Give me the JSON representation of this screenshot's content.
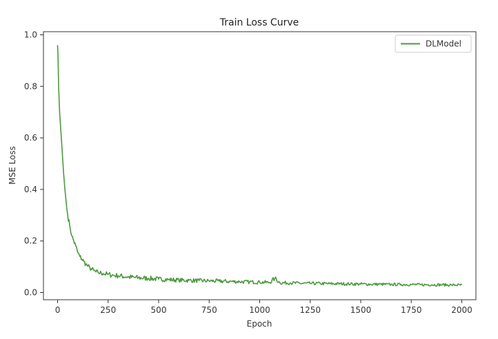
{
  "chart_data": {
    "type": "line",
    "title": "Train Loss Curve",
    "xlabel": "Epoch",
    "ylabel": "MSE Loss",
    "xlim": [
      -70,
      2070
    ],
    "ylim": [
      -0.028,
      1.012
    ],
    "xticks": [
      0,
      250,
      500,
      750,
      1000,
      1250,
      1500,
      1750,
      2000
    ],
    "yticks": [
      0.0,
      0.2,
      0.4,
      0.6,
      0.8,
      1.0
    ],
    "xtick_labels": [
      "0",
      "250",
      "500",
      "750",
      "1000",
      "1250",
      "1500",
      "1750",
      "2000"
    ],
    "ytick_labels": [
      "0.0",
      "0.2",
      "0.4",
      "0.6",
      "0.8",
      "1.0"
    ],
    "grid": false,
    "legend": {
      "placement": "top-right",
      "entries": [
        "DLModel"
      ]
    },
    "series": [
      {
        "name": "DLModel",
        "color": "#4a9a3c",
        "x": [
          0,
          2,
          5,
          10,
          15,
          20,
          25,
          30,
          35,
          40,
          45,
          50,
          60,
          70,
          80,
          90,
          100,
          110,
          120,
          130,
          140,
          150,
          160,
          170,
          180,
          190,
          200,
          225,
          250,
          275,
          300,
          350,
          400,
          450,
          500,
          550,
          600,
          650,
          700,
          750,
          800,
          850,
          900,
          950,
          1000,
          1050,
          1075,
          1100,
          1150,
          1200,
          1250,
          1300,
          1350,
          1400,
          1450,
          1500,
          1550,
          1600,
          1650,
          1700,
          1750,
          1800,
          1850,
          1900,
          1950,
          2000
        ],
        "y": [
          0.96,
          0.92,
          0.8,
          0.7,
          0.64,
          0.58,
          0.52,
          0.46,
          0.41,
          0.37,
          0.33,
          0.3,
          0.26,
          0.22,
          0.2,
          0.18,
          0.155,
          0.14,
          0.13,
          0.12,
          0.11,
          0.102,
          0.095,
          0.09,
          0.085,
          0.08,
          0.078,
          0.074,
          0.07,
          0.067,
          0.065,
          0.06,
          0.057,
          0.055,
          0.052,
          0.05,
          0.048,
          0.047,
          0.046,
          0.045,
          0.044,
          0.043,
          0.042,
          0.041,
          0.04,
          0.039,
          0.055,
          0.038,
          0.037,
          0.036,
          0.035,
          0.035,
          0.034,
          0.034,
          0.033,
          0.033,
          0.032,
          0.032,
          0.031,
          0.031,
          0.031,
          0.03,
          0.03,
          0.03,
          0.029,
          0.029
        ]
      }
    ]
  }
}
